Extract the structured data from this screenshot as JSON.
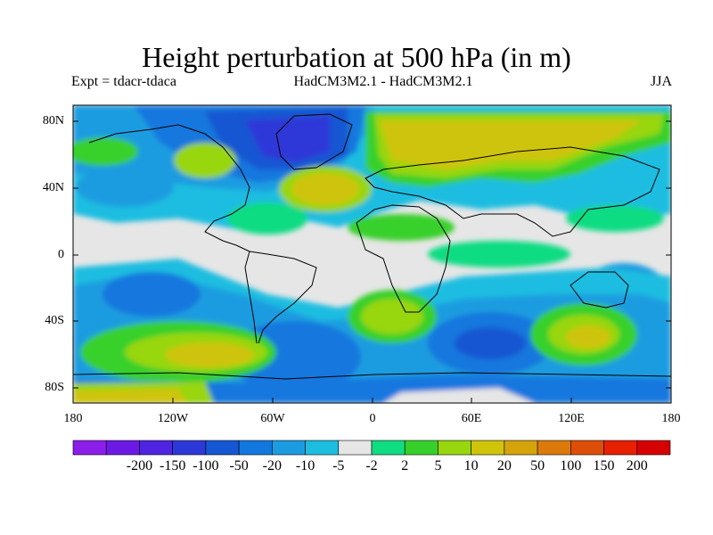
{
  "title": "Height perturbation at 500 hPa (in m)",
  "subtitle_left": "Expt = tdacr-tdaca",
  "subtitle_center": "HadCM3M2.1 - HadCM3M2.1",
  "subtitle_right": "JJA",
  "y_ticks": [
    "80N",
    "40N",
    "0",
    "40S",
    "80S"
  ],
  "x_ticks": [
    "180",
    "120W",
    "60W",
    "0",
    "60E",
    "120E",
    "180"
  ],
  "colorbar": {
    "colors": [
      "#8c1eea",
      "#6d19e6",
      "#4f24e1",
      "#2d38d8",
      "#1557d2",
      "#1277de",
      "#1b9ce0",
      "#1dbde0",
      "#e6e6e6",
      "#10dc82",
      "#37d02b",
      "#98d60e",
      "#cfc40a",
      "#d4a40a",
      "#db7a0b",
      "#dd4e08",
      "#e62000",
      "#d60000"
    ],
    "labels": [
      "-200",
      "-150",
      "-100",
      "-50",
      "-20",
      "-10",
      "-5",
      "-2",
      "2",
      "5",
      "10",
      "20",
      "50",
      "100",
      "150",
      "200"
    ]
  }
}
